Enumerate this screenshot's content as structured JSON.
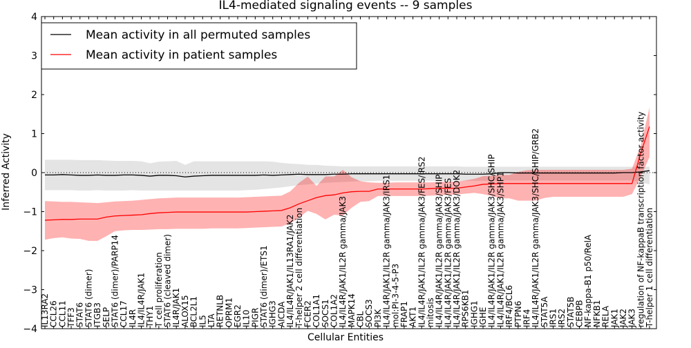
{
  "chart_data": {
    "type": "line",
    "title": "IL4-mediated signaling events -- 9 samples",
    "xlabel": "Cellular Entities",
    "ylabel": "Inferred Activity",
    "ylim": [
      -4,
      4
    ],
    "yticks": [
      -4,
      -3,
      -2,
      -1,
      0,
      1,
      2,
      3,
      4
    ],
    "ytick_labels": [
      "−4",
      "−3",
      "−2",
      "−1",
      "0",
      "1",
      "2",
      "3",
      "4"
    ],
    "grid": false,
    "zero_reference_line": "dotted",
    "legend": {
      "placement": "top-left",
      "entries": [
        {
          "label": "Mean activity in all permuted samples",
          "color": "#000000"
        },
        {
          "label": "Mean activity in patient samples",
          "color": "#ff0000"
        }
      ]
    },
    "categories": [
      "IL13RA2",
      "CCL26",
      "CCL11",
      "TFF3",
      "STAT6",
      "STAT6 (dimer)",
      "ITGB3",
      "SELP",
      "STAT6 (dimer)/PARP14",
      "CCL17",
      "IL4R",
      "IL4/IL4R/JAK1",
      "THY1",
      "T cell proliferation",
      "STAT6 (cleaved dimer)",
      "IL4R/JAK1",
      "ALOX15",
      "BCL2L1",
      "IL5",
      "LTA",
      "RETNLB",
      "OPRM1",
      "EGR2",
      "IL10",
      "PIGR",
      "STAT6 (dimer)/ETS1",
      "IGHG3",
      "AICDA",
      "IL4/IL4R/JAK1/IL13RA1/JAK2",
      "T-helper 2 cell differentiation",
      "FCER2",
      "COL1A1",
      "SOCS1",
      "COL1A2",
      "IL4/IL4R/JAK1/IL2R gamma/JAK3",
      "MAPK14",
      "CBL",
      "SOCS3",
      "PI3K",
      "IL4/IL4R/JAK1/IL2R gamma/JAK3/IRS1",
      "mol:PI-3-4-5-P3",
      "FRAP1",
      "AKT1",
      "IL4/IL4R/JAK1/IL2R gamma/JAK3/FES/IRS2",
      "mitosis",
      "IL4/IL4R/JAK1/IL2R gamma/JAK3/SHIP",
      "IL4/IL4R/JAK1/IL2R gamma/JAK3/FES",
      "IL4/IL4R/JAK1/IL2R gamma/JAK3/DOK2",
      "RPS6KB1",
      "IGHG1",
      "IGHE",
      "IL4/IL4R/JAK1/IL2R gamma/JAK3/SHC/SHIP",
      "IL4/IL4R/JAK1/IL2R gamma/JAK3/SHP1",
      "IRF4/BCL6",
      "PTPN6",
      "IRF4",
      "IL4/IL4R/JAK1/IL2R gamma/JAK3/SHC/SHIP/GRB2",
      "STAT5A",
      "IRS1",
      "IRS2",
      "STAT5B",
      "CEBPB",
      "NF-kappa-B1 p50/RelA",
      "NFKB1",
      "RELA",
      "JAK1",
      "JAK2",
      "JAK3",
      "regulation of NF-kappaB transcription factor activity",
      "T-helper 1 cell differentiation"
    ],
    "series": [
      {
        "name": "Mean activity in all permuted samples",
        "color": "#000000",
        "values": [
          -0.06,
          -0.06,
          -0.05,
          -0.06,
          -0.07,
          -0.07,
          -0.06,
          -0.07,
          -0.07,
          -0.06,
          -0.06,
          -0.07,
          -0.09,
          -0.07,
          -0.07,
          -0.08,
          -0.11,
          -0.09,
          -0.08,
          -0.07,
          -0.07,
          -0.07,
          -0.07,
          -0.07,
          -0.07,
          -0.06,
          -0.07,
          -0.06,
          -0.05,
          -0.04,
          -0.05,
          -0.05,
          -0.05,
          -0.04,
          -0.04,
          -0.03,
          -0.03,
          -0.03,
          -0.03,
          -0.03,
          -0.03,
          -0.03,
          -0.03,
          -0.03,
          -0.03,
          -0.03,
          -0.03,
          -0.03,
          -0.04,
          -0.04,
          -0.04,
          -0.03,
          0.0,
          0.0,
          -0.01,
          -0.01,
          -0.01,
          -0.01,
          -0.01,
          -0.01,
          -0.01,
          -0.01,
          -0.01,
          -0.01,
          -0.01,
          -0.01,
          0.0,
          0.0,
          0.02,
          0.05
        ],
        "band_upper": [
          0.33,
          0.33,
          0.33,
          0.33,
          0.32,
          0.32,
          0.32,
          0.31,
          0.3,
          0.3,
          0.3,
          0.29,
          0.24,
          0.28,
          0.29,
          0.3,
          0.2,
          0.29,
          0.29,
          0.29,
          0.29,
          0.29,
          0.29,
          0.29,
          0.29,
          0.29,
          0.28,
          0.25,
          0.23,
          0.22,
          0.2,
          0.2,
          0.18,
          0.17,
          0.16,
          0.16,
          0.16,
          0.16,
          0.16,
          0.16,
          0.16,
          0.16,
          0.16,
          0.16,
          0.16,
          0.16,
          0.16,
          0.16,
          0.15,
          0.15,
          0.15,
          0.15,
          0.15,
          0.15,
          0.15,
          0.15,
          0.15,
          0.15,
          0.15,
          0.15,
          0.15,
          0.15,
          0.15,
          0.15,
          0.15,
          0.15,
          0.15,
          0.15,
          0.15,
          0.15
        ],
        "band_lower": [
          -0.45,
          -0.45,
          -0.45,
          -0.45,
          -0.46,
          -0.46,
          -0.45,
          -0.46,
          -0.46,
          -0.46,
          -0.45,
          -0.46,
          -0.46,
          -0.46,
          -0.46,
          -0.46,
          -0.46,
          -0.46,
          -0.46,
          -0.46,
          -0.46,
          -0.46,
          -0.46,
          -0.45,
          -0.44,
          -0.42,
          -0.4,
          -0.38,
          -0.35,
          -0.32,
          -0.3,
          -0.28,
          -0.26,
          -0.25,
          -0.24,
          -0.23,
          -0.22,
          -0.22,
          -0.21,
          -0.21,
          -0.21,
          -0.21,
          -0.21,
          -0.21,
          -0.21,
          -0.21,
          -0.21,
          -0.21,
          -0.21,
          -0.21,
          -0.21,
          -0.21,
          -0.2,
          -0.2,
          -0.2,
          -0.2,
          -0.2,
          -0.2,
          -0.2,
          -0.2,
          -0.2,
          -0.2,
          -0.2,
          -0.2,
          -0.2,
          -0.2,
          -0.2,
          -0.2,
          -0.25,
          -0.3
        ]
      },
      {
        "name": "Mean activity in patient samples",
        "color": "#ff0000",
        "values": [
          -1.22,
          -1.21,
          -1.2,
          -1.2,
          -1.19,
          -1.19,
          -1.19,
          -1.14,
          -1.11,
          -1.1,
          -1.09,
          -1.08,
          -1.05,
          -1.03,
          -1.02,
          -1.01,
          -1.01,
          -1.01,
          -1.01,
          -1.01,
          -1.01,
          -1.01,
          -1.01,
          -1.01,
          -1.0,
          -0.99,
          -0.98,
          -0.97,
          -0.9,
          -0.8,
          -0.72,
          -0.64,
          -0.59,
          -0.57,
          -0.52,
          -0.49,
          -0.48,
          -0.48,
          -0.42,
          -0.42,
          -0.42,
          -0.42,
          -0.42,
          -0.42,
          -0.41,
          -0.4,
          -0.4,
          -0.4,
          -0.37,
          -0.34,
          -0.3,
          -0.29,
          -0.28,
          -0.28,
          -0.28,
          -0.28,
          -0.28,
          -0.28,
          -0.28,
          -0.28,
          -0.28,
          -0.28,
          -0.28,
          -0.28,
          -0.28,
          -0.28,
          -0.28,
          -0.28,
          0.5,
          1.18
        ],
        "band_upper": [
          -0.73,
          -0.74,
          -0.75,
          -0.75,
          -0.76,
          -0.77,
          -0.78,
          -0.76,
          -0.74,
          -0.73,
          -0.72,
          -0.7,
          -0.68,
          -0.66,
          -0.65,
          -0.64,
          -0.64,
          -0.64,
          -0.64,
          -0.64,
          -0.64,
          -0.64,
          -0.64,
          -0.63,
          -0.62,
          -0.61,
          -0.6,
          -0.59,
          -0.48,
          -0.26,
          -0.1,
          -0.34,
          -0.1,
          -0.1,
          0.07,
          -0.12,
          -0.22,
          -0.25,
          -0.26,
          -0.26,
          -0.25,
          -0.25,
          -0.25,
          -0.25,
          -0.25,
          -0.24,
          -0.23,
          -0.23,
          -0.2,
          -0.16,
          -0.09,
          -0.08,
          -0.06,
          -0.06,
          0.02,
          0.06,
          0.07,
          0.07,
          0.07,
          0.07,
          0.07,
          0.07,
          0.07,
          0.07,
          0.07,
          0.07,
          0.07,
          0.1,
          0.7,
          1.67
        ],
        "band_lower": [
          -1.72,
          -1.68,
          -1.66,
          -1.69,
          -1.7,
          -1.75,
          -1.75,
          -1.63,
          -1.5,
          -1.48,
          -1.47,
          -1.47,
          -1.46,
          -1.45,
          -1.45,
          -1.44,
          -1.44,
          -1.44,
          -1.44,
          -1.43,
          -1.43,
          -1.43,
          -1.43,
          -1.42,
          -1.41,
          -1.4,
          -1.39,
          -1.38,
          -1.3,
          -1.15,
          -0.98,
          -1.06,
          -1.2,
          -1.08,
          -1.1,
          -0.9,
          -0.75,
          -0.73,
          -0.6,
          -0.6,
          -0.6,
          -0.6,
          -0.6,
          -0.6,
          -0.59,
          -0.58,
          -0.57,
          -0.56,
          -0.54,
          -0.52,
          -0.55,
          -0.6,
          -0.66,
          -0.66,
          -0.72,
          -0.72,
          -0.72,
          -0.65,
          -0.62,
          -0.62,
          -0.62,
          -0.62,
          -0.62,
          -0.62,
          -0.62,
          -0.62,
          -0.62,
          -0.55,
          -0.1,
          0.4
        ]
      }
    ]
  }
}
